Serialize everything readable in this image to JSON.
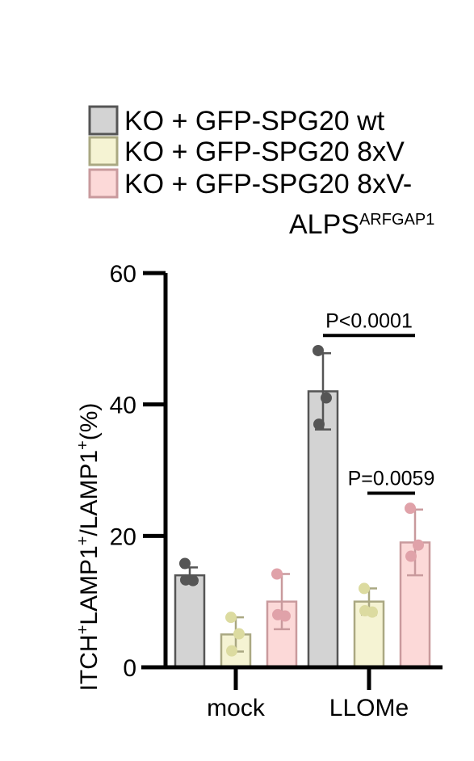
{
  "chart_data": {
    "type": "bar",
    "categories": [
      "mock",
      "LLOMe"
    ],
    "ylabel_parts": [
      {
        "text": "ITCH",
        "sup": false
      },
      {
        "text": "+",
        "sup": true
      },
      {
        "text": "LAMP1",
        "sup": false
      },
      {
        "text": "+",
        "sup": true
      },
      {
        "text": "/LAMP1",
        "sup": false
      },
      {
        "text": "+",
        "sup": true
      },
      {
        "text": "(%)",
        "sup": false
      }
    ],
    "ylim": [
      0,
      60
    ],
    "yticks": [
      0,
      20,
      40,
      60
    ],
    "grid": false,
    "legend_position": "top-right",
    "series": [
      {
        "name": "KO + GFP-SPG20 wt",
        "legend_lines": [
          "KO + GFP-SPG20 wt"
        ],
        "fill": "#d3d3d3",
        "stroke": "#555555",
        "dot": "#555555",
        "values": [
          14.0,
          42.0
        ],
        "errors": [
          1.2,
          5.8
        ],
        "points": [
          [
            15.8,
            13.2,
            13.3
          ],
          [
            48.2,
            41.0,
            37.0
          ]
        ]
      },
      {
        "name": "KO + GFP-SPG20 8xV",
        "legend_lines": [
          "KO + GFP-SPG20 8xV"
        ],
        "fill": "#f5f3d3",
        "stroke": "#aaa882",
        "dot": "#dcdba0",
        "values": [
          5.0,
          10.0
        ],
        "errors": [
          2.6,
          2.0
        ],
        "points": [
          [
            7.6,
            5.1,
            2.5
          ],
          [
            12.0,
            8.4,
            8.6
          ]
        ]
      },
      {
        "name": "KO + GFP-SPG20 8xV-ALPSARFGAP1",
        "legend_lines": [
          "KO + GFP-SPG20 8xV-"
        ],
        "legend_line2_main": "ALPS",
        "legend_line2_sup": "ARFGAP1",
        "fill": "#fcd9d8",
        "stroke": "#c99a9d",
        "dot": "#e0a2a9",
        "values": [
          10.0,
          19.0
        ],
        "errors": [
          4.2,
          5.0
        ],
        "points": [
          [
            14.2,
            7.8,
            8.0
          ],
          [
            24.2,
            18.6,
            16.9
          ]
        ]
      }
    ],
    "annotations": [
      {
        "text": "P<0.0001",
        "group": 1,
        "from_series": 0,
        "to_series": 2,
        "y": 50.5
      },
      {
        "text": "P=0.0059",
        "group": 1,
        "from_series": 1,
        "to_series": 2,
        "y": 26.5
      }
    ]
  }
}
